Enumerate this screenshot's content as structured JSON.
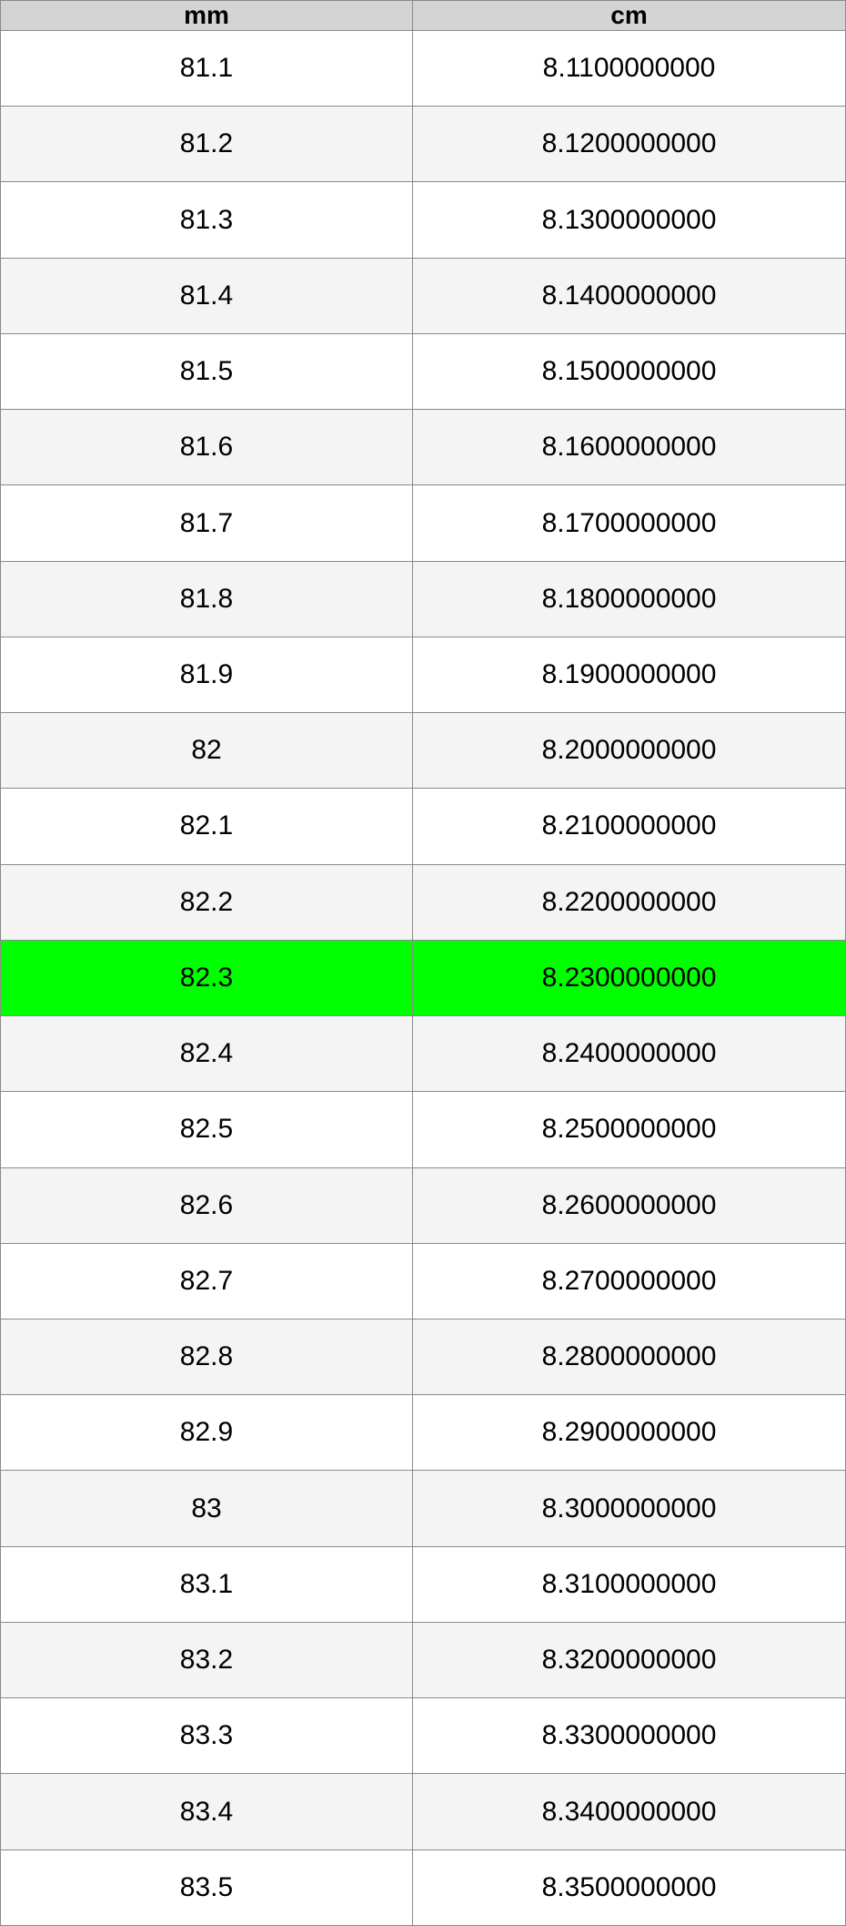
{
  "table": {
    "header": [
      "mm",
      "cm"
    ],
    "rows": [
      [
        "81.1",
        "8.1100000000"
      ],
      [
        "81.2",
        "8.1200000000"
      ],
      [
        "81.3",
        "8.1300000000"
      ],
      [
        "81.4",
        "8.1400000000"
      ],
      [
        "81.5",
        "8.1500000000"
      ],
      [
        "81.6",
        "8.1600000000"
      ],
      [
        "81.7",
        "8.1700000000"
      ],
      [
        "81.8",
        "8.1800000000"
      ],
      [
        "81.9",
        "8.1900000000"
      ],
      [
        "82",
        "8.2000000000"
      ],
      [
        "82.1",
        "8.2100000000"
      ],
      [
        "82.2",
        "8.2200000000"
      ],
      [
        "82.3",
        "8.2300000000"
      ],
      [
        "82.4",
        "8.2400000000"
      ],
      [
        "82.5",
        "8.2500000000"
      ],
      [
        "82.6",
        "8.2600000000"
      ],
      [
        "82.7",
        "8.2700000000"
      ],
      [
        "82.8",
        "8.2800000000"
      ],
      [
        "82.9",
        "8.2900000000"
      ],
      [
        "83",
        "8.3000000000"
      ],
      [
        "83.1",
        "8.3100000000"
      ],
      [
        "83.2",
        "8.3200000000"
      ],
      [
        "83.3",
        "8.3300000000"
      ],
      [
        "83.4",
        "8.3400000000"
      ],
      [
        "83.5",
        "8.3500000000"
      ]
    ]
  }
}
